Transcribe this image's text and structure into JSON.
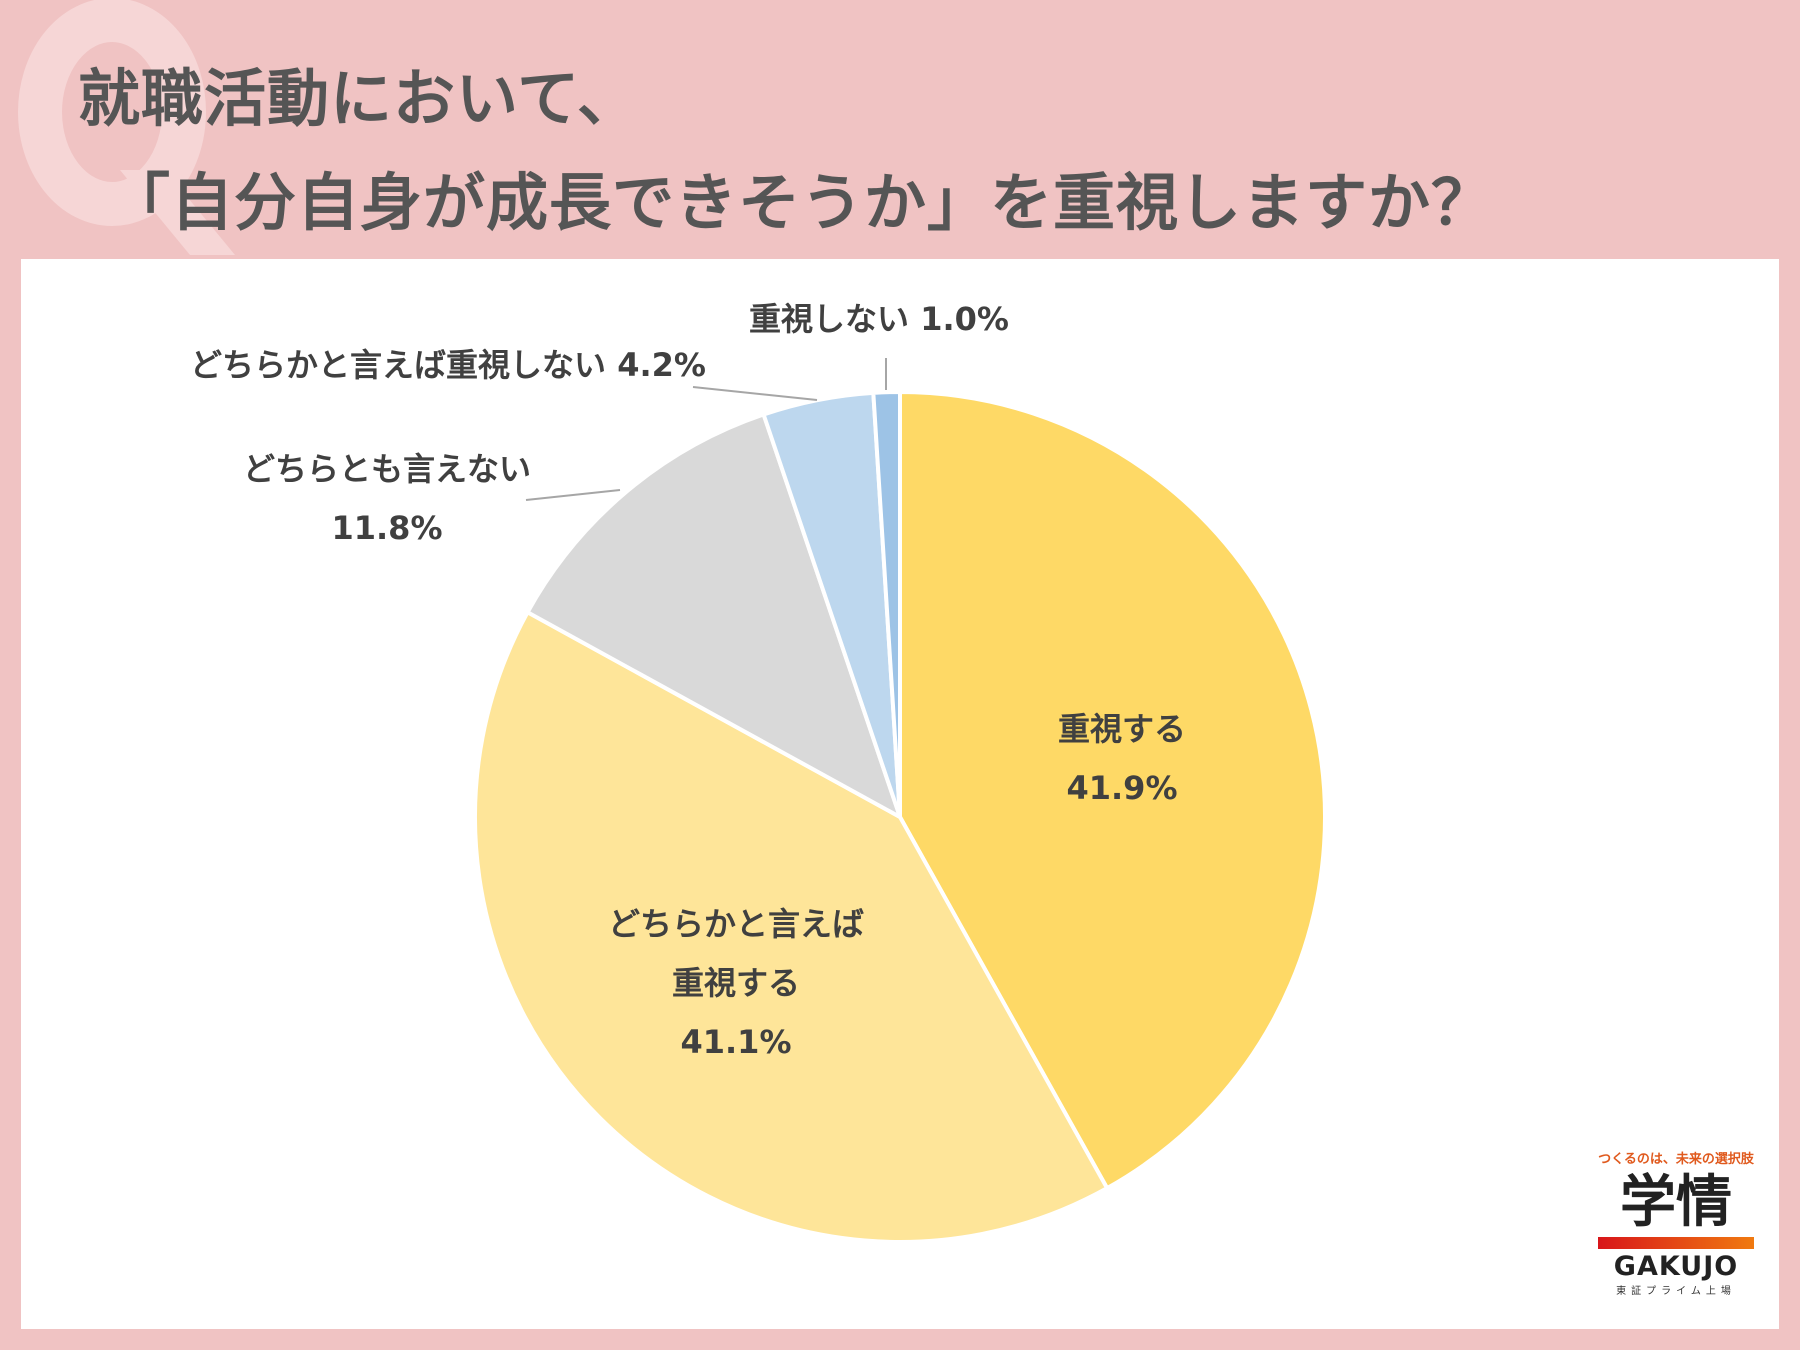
{
  "title": {
    "line1": "就職活動において、",
    "line2": "「自分自身が成長できそうか」を重視しますか？",
    "watermark": "Q"
  },
  "chart_data": {
    "type": "pie",
    "start": "top",
    "direction": "clockwise",
    "unit": "%",
    "slices": [
      {
        "label": "重視する",
        "label_lines": [
          "重視する"
        ],
        "value": 41.9,
        "value_text": "41.9%",
        "color": "#fed966"
      },
      {
        "label": "どちらかと言えば重視する",
        "label_lines": [
          "どちらかと言えば",
          "重視する"
        ],
        "value": 41.1,
        "value_text": "41.1%",
        "color": "#fee599"
      },
      {
        "label": "どちらとも言えない",
        "label_lines": [
          "どちらとも言えない"
        ],
        "value": 11.8,
        "value_text": "11.8%",
        "color": "#d9d9d9"
      },
      {
        "label": "どちらかと言えば重視しない",
        "label_lines": [
          "どちらかと言えば重視しない 4.2%"
        ],
        "value": 4.2,
        "value_text": "",
        "color": "#bdd7ee"
      },
      {
        "label": "重視しない",
        "label_lines": [
          "重視しない 1.0%"
        ],
        "value": 1.0,
        "value_text": "",
        "color": "#9dc3e6"
      }
    ]
  },
  "logo": {
    "tagline": "つくるのは、未来の選択肢",
    "kanji": "学情",
    "english": "GAKUJO",
    "sub": "東証プライム上場"
  }
}
